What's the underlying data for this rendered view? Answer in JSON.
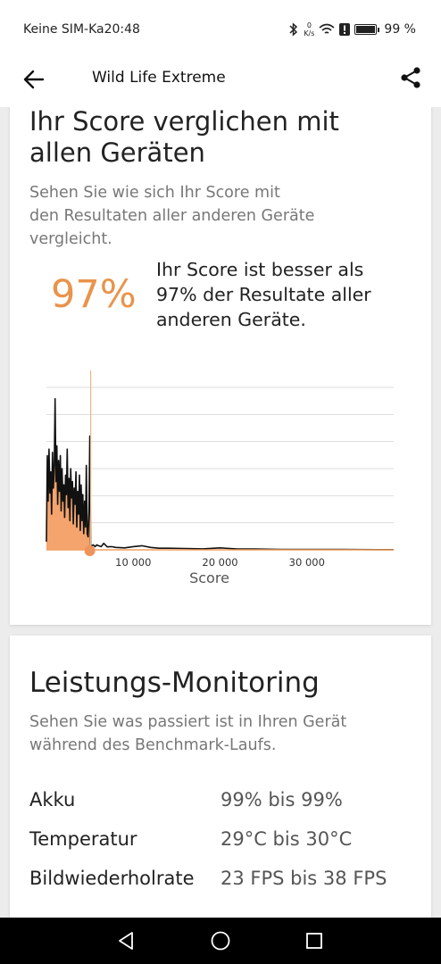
{
  "status": {
    "carrier": "Keine SIM-Ka",
    "time": "20:48",
    "net_speed_value": "0",
    "net_speed_unit": "K/s",
    "battery": "99 %"
  },
  "app_bar": {
    "title": "Wild Life Extreme"
  },
  "comparison": {
    "title_line1": "Ihr Score verglichen mit",
    "title_line2": "allen Geräten",
    "desc_line1": "Sehen Sie wie sich Ihr Score mit",
    "desc_line2": "den Resultaten aller anderen Geräte",
    "desc_line3": "vergleicht.",
    "percentile": "97%",
    "percentile_text_line1": "Ihr Score ist besser als",
    "percentile_text_line2": "97% der Resultate aller",
    "percentile_text_line3": "anderen Geräte."
  },
  "chart_data": {
    "type": "area",
    "xlabel": "Score",
    "ylabel": "",
    "x_ticks": [
      "10 000",
      "20 000",
      "30 000"
    ],
    "xlim": [
      0,
      40000
    ],
    "grid": "horizontal",
    "your_score": 5100,
    "colors": {
      "line": "#111111",
      "fill": "#f4a46c",
      "marker": "#f0935a"
    },
    "series": [
      {
        "x": [
          0,
          100,
          200,
          300,
          400,
          500,
          600,
          700,
          800,
          900,
          1000,
          1100,
          1200,
          1300,
          1400,
          1500,
          1600,
          1700,
          1800,
          1900,
          2000,
          2100,
          2200,
          2300,
          2400,
          2500,
          2600,
          2700,
          2800,
          2900,
          3000,
          3100,
          3200,
          3300,
          3400,
          3500,
          3600,
          3700,
          3800,
          3900,
          4000,
          4100,
          4200,
          4300,
          4400,
          4500,
          4600,
          4700,
          4800,
          4900,
          5000,
          5100,
          5200,
          5400,
          5600,
          5800,
          6000,
          6300,
          6600,
          7000,
          7500,
          8000,
          9000,
          10000,
          11000,
          12000,
          13000,
          14000,
          16000,
          18000,
          20000,
          22000,
          24000,
          27000,
          30000,
          34000,
          38000,
          40000
        ],
        "values": [
          5,
          58,
          30,
          62,
          35,
          48,
          22,
          60,
          38,
          52,
          93,
          42,
          64,
          28,
          55,
          36,
          58,
          24,
          50,
          30,
          40,
          20,
          46,
          34,
          62,
          26,
          44,
          18,
          50,
          32,
          42,
          16,
          38,
          28,
          48,
          14,
          36,
          22,
          46,
          12,
          40,
          18,
          34,
          10,
          30,
          14,
          52,
          10,
          8,
          24,
          70,
          3,
          2.5,
          3,
          2,
          3,
          2.5,
          2,
          4,
          1.8,
          2,
          1.5,
          1.2,
          2,
          2.5,
          1.5,
          1,
          1,
          0.8,
          0.6,
          1.2,
          0.5,
          0.5,
          0.3,
          0.3,
          0.2,
          0.1,
          0.1
        ]
      }
    ]
  },
  "monitoring": {
    "title": "Leistungs-Monitoring",
    "desc_line1": "Sehen Sie was passiert ist in Ihren Gerät",
    "desc_line2": "während des Benchmark-Laufs.",
    "rows": [
      {
        "label": "Akku",
        "value": "99% bis 99%"
      },
      {
        "label": "Temperatur",
        "value": "29°C bis 30°C"
      },
      {
        "label": "Bildwiederholrate",
        "value": "23 FPS bis 38 FPS"
      }
    ]
  }
}
